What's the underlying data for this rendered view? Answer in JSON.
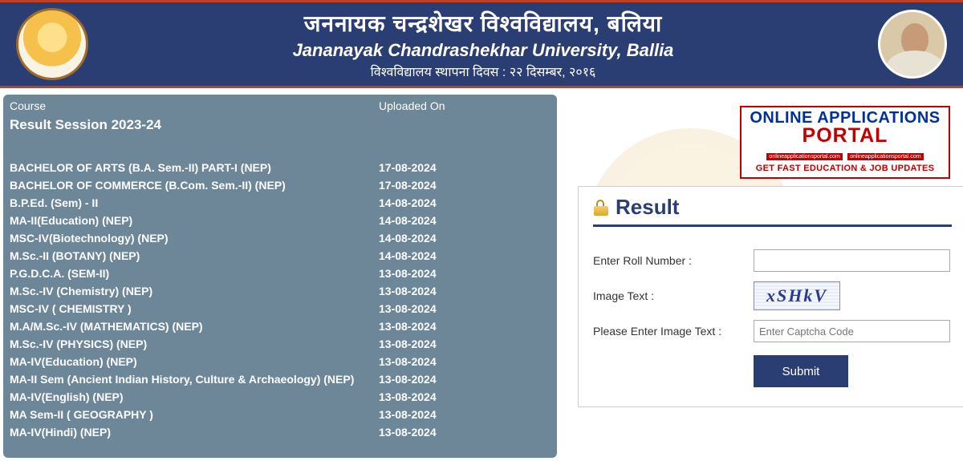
{
  "header": {
    "title_hindi": "जननायक चन्द्रशेखर विश्वविद्यालय, बलिया",
    "title_english": "Jananayak Chandrashekhar University, Ballia",
    "subtitle": "विश्वविद्यालय स्थापना दिवस : २२ दिसम्बर, २०१६"
  },
  "results_table": {
    "col1": "Course",
    "col2": "Uploaded On",
    "session": "Result Session 2023-24",
    "rows": [
      {
        "course": "BACHELOR OF ARTS (B.A. Sem.-II) PART-I (NEP)",
        "date": "17-08-2024"
      },
      {
        "course": "BACHELOR OF COMMERCE (B.Com. Sem.-II) (NEP)",
        "date": "17-08-2024"
      },
      {
        "course": "B.P.Ed. (Sem) - II",
        "date": "14-08-2024"
      },
      {
        "course": "MA-II(Education) (NEP)",
        "date": "14-08-2024"
      },
      {
        "course": "MSC-IV(Biotechnology) (NEP)",
        "date": "14-08-2024"
      },
      {
        "course": "M.Sc.-II (BOTANY) (NEP)",
        "date": "14-08-2024"
      },
      {
        "course": "P.G.D.C.A. (SEM-II)",
        "date": "13-08-2024"
      },
      {
        "course": "M.Sc.-IV (Chemistry) (NEP)",
        "date": "13-08-2024"
      },
      {
        "course": "MSC-IV ( CHEMISTRY )",
        "date": "13-08-2024"
      },
      {
        "course": "M.A/M.Sc.-IV (MATHEMATICS) (NEP)",
        "date": "13-08-2024"
      },
      {
        "course": "M.Sc.-IV (PHYSICS) (NEP)",
        "date": "13-08-2024"
      },
      {
        "course": "MA-IV(Education) (NEP)",
        "date": "13-08-2024"
      },
      {
        "course": "MA-II Sem (Ancient Indian History, Culture & Archaeology) (NEP)",
        "date": "13-08-2024"
      },
      {
        "course": "MA-IV(English) (NEP)",
        "date": "13-08-2024"
      },
      {
        "course": "MA Sem-II ( GEOGRAPHY )",
        "date": "13-08-2024"
      },
      {
        "course": "MA-IV(Hindi) (NEP)",
        "date": "13-08-2024"
      }
    ]
  },
  "portal_badge": {
    "line1": "ONLINE APPLICATIONS",
    "line2": "PORTAL",
    "tag": "onlineapplicationsportal.com",
    "line4": "GET FAST EDUCATION & JOB UPDATES"
  },
  "form": {
    "title": "Result",
    "roll_label": "Enter Roll Number :",
    "imgtext_label": "Image Text :",
    "captcha_value": "xSHkV",
    "captcha_label": "Please Enter Image Text :",
    "captcha_placeholder": "Enter Captcha Code",
    "submit": "Submit"
  },
  "colors": {
    "header_bg": "#2b3e73",
    "header_border": "#c04020",
    "panel_bg": "#6d8799",
    "badge_border": "#c00000",
    "badge_blue": "#0030a0",
    "submit_bg": "#2b3e73"
  }
}
